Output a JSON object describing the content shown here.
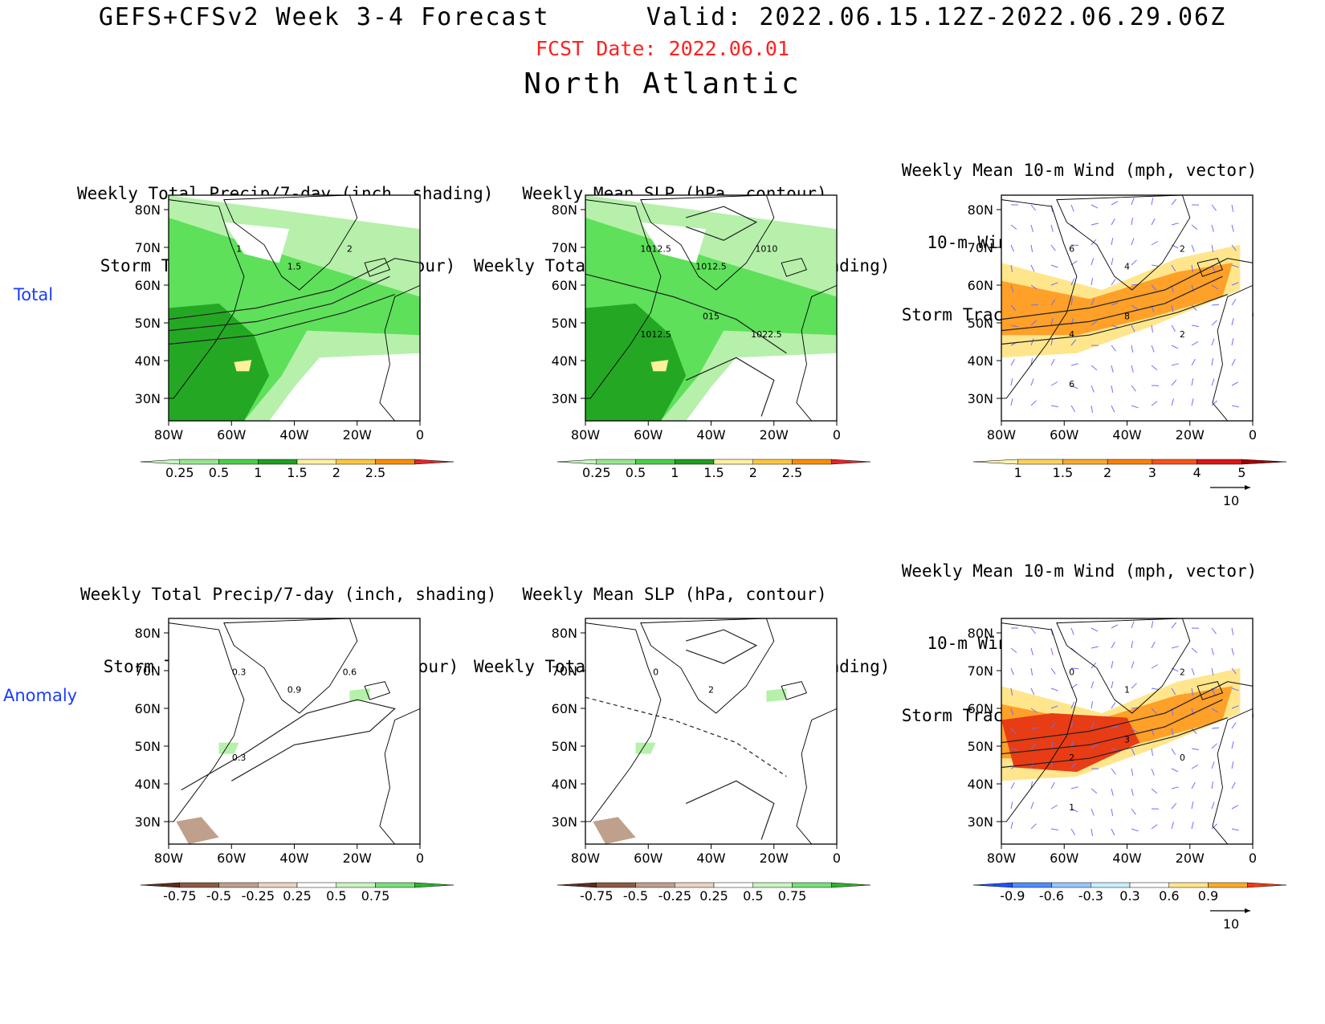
{
  "header": {
    "title": "GEFS+CFSv2 Week 3-4 Forecast      Valid: 2022.06.15.12Z-2022.06.29.06Z",
    "fcst_date": "FCST Date: 2022.06.01",
    "region": "North Atlantic"
  },
  "rows": [
    {
      "label": "Total"
    },
    {
      "label": "Anomaly"
    }
  ],
  "panel_titles": {
    "precip": [
      "Weekly Total Precip/7-day (inch, shading)",
      "Storm Track Density/7-day (contour)"
    ],
    "slp": [
      "Weekly Mean SLP (hPa, contour)",
      "Weekly Total Precip/7-day (inch, shading)"
    ],
    "wind": [
      "Weekly Mean 10-m Wind (mph, vector)",
      "10-m Wind Speed (mph, contour)",
      "Storm Track Density/7-day (shading)"
    ]
  },
  "axes": {
    "lat_ticks": [
      "80N",
      "70N",
      "60N",
      "50N",
      "40N",
      "30N"
    ],
    "lon_ticks": [
      "80W",
      "60W",
      "40W",
      "20W",
      "0"
    ]
  },
  "contour_labels": {
    "total_precip": [
      "1",
      "1.5",
      "2"
    ],
    "total_slp": [
      "1012.5",
      "1012.5",
      "1010",
      "1012.5",
      "015",
      "1022.5"
    ],
    "total_wind": [
      "6",
      "4",
      "2",
      "4",
      "8",
      "2",
      "6"
    ],
    "anom_precip": [
      "0.3",
      "0.9",
      "0.6",
      "0.3"
    ],
    "anom_slp": [
      "0",
      "2"
    ],
    "anom_wind": [
      "0",
      "1",
      "2",
      "2",
      "3",
      "0",
      "1"
    ]
  },
  "colorbars": {
    "precip_total": {
      "labels": [
        "0.25",
        "0.5",
        "1",
        "1.5",
        "2",
        "2.5"
      ],
      "colors": [
        "#c8f5c0",
        "#96e88c",
        "#46d246",
        "#1ea01e",
        "#fff0a0",
        "#ffc83c",
        "#ff8c00",
        "#e02828"
      ]
    },
    "storm_total": {
      "labels": [
        "1",
        "1.5",
        "2",
        "3",
        "4",
        "5"
      ],
      "colors": [
        "#fff3b0",
        "#ffd25a",
        "#ffaa28",
        "#ff8000",
        "#ff5014",
        "#e01414",
        "#a00000"
      ]
    },
    "precip_anom": {
      "labels": [
        "-0.75",
        "-0.5",
        "-0.25",
        "0.25",
        "0.5",
        "0.75"
      ],
      "colors": [
        "#5a2d1e",
        "#8c5a46",
        "#bea08c",
        "#ebd2c3",
        "#ffffff",
        "#c8f5c0",
        "#78e078",
        "#2db42d"
      ]
    },
    "storm_anom": {
      "labels": [
        "-0.9",
        "-0.6",
        "-0.3",
        "0.3",
        "0.6",
        "0.9"
      ],
      "colors": [
        "#1e50ff",
        "#508cff",
        "#96c8ff",
        "#c8f0ff",
        "#ffffff",
        "#ffe68c",
        "#ffaa28",
        "#f03c14"
      ]
    }
  },
  "vector_ref": "10",
  "colors": {
    "fcst_date": "#ff2020",
    "row_label": "#1a3cff",
    "precip_light": "#b6f0ab",
    "precip_mid": "#5ee05a",
    "precip_dark": "#24a824",
    "precip_yellow": "#fff0a0",
    "storm_yellow": "#ffe68c",
    "storm_orange": "#ffa028",
    "storm_red": "#e83c14",
    "wind_vector": "#6e6eff",
    "dry_brown": "#bea08c"
  }
}
